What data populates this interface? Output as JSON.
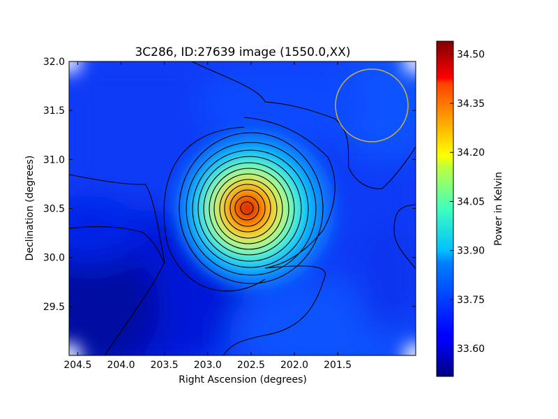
{
  "chart_data": {
    "type": "heatmap",
    "title": "3C286, ID:27639 image (1550.0,XX)",
    "xlabel": "Right Ascension (degrees)",
    "ylabel": "Declination (degrees)",
    "xlim": [
      204.6,
      200.6
    ],
    "ylim": [
      29.0,
      32.0
    ],
    "x_axis_inverted": true,
    "x_ticks": [
      "204.5",
      "204.0",
      "203.5",
      "203.0",
      "202.5",
      "202.0",
      "201.5"
    ],
    "x_tick_values": [
      204.5,
      204.0,
      203.5,
      203.0,
      202.5,
      202.0,
      201.5
    ],
    "y_ticks": [
      "32.0",
      "31.5",
      "31.0",
      "30.5",
      "30.0",
      "29.5"
    ],
    "y_tick_values": [
      32.0,
      31.5,
      31.0,
      30.5,
      30.0,
      29.5
    ],
    "colormap": "jet",
    "colorbar": {
      "label": "Power in Kelvin",
      "vmin": 33.515,
      "vmax": 34.54,
      "ticks": [
        "34.50",
        "34.35",
        "34.20",
        "34.05",
        "33.90",
        "33.75",
        "33.60"
      ],
      "tick_values": [
        34.5,
        34.35,
        34.2,
        34.05,
        33.9,
        33.75,
        33.6
      ]
    },
    "peak": {
      "ra": 202.75,
      "dec": 30.5,
      "value": 34.53
    },
    "beam_circle": {
      "ra": 201.5,
      "dec": 31.57,
      "color": "#c8b44a"
    },
    "contour_color": "#000000",
    "contour_count": 12,
    "grid": false
  }
}
